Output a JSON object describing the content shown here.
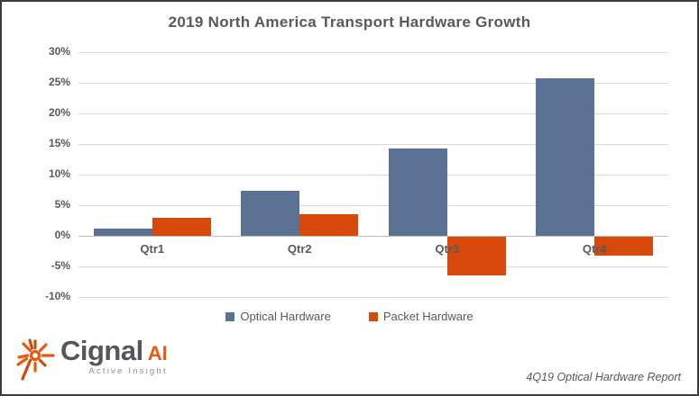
{
  "title": "2019 North America Transport Hardware Growth",
  "footer_note": "4Q19 Optical Hardware Report",
  "logo": {
    "name": "Cignal",
    "suffix": "AI",
    "tagline": "Active Insight",
    "icon": "starburst-icon",
    "icon_color": "#e8590e",
    "text_color": "#54565a"
  },
  "colors": {
    "optical": "#5b7294",
    "packet": "#d6490a",
    "text": "#595959",
    "gridline": "#d9d9d9",
    "zero_line": "#bfbfbf"
  },
  "chart_data": {
    "type": "bar",
    "title": "2019 North America Transport Hardware Growth",
    "categories": [
      "Qtr1",
      "Qtr2",
      "Qtr3",
      "Qtr4"
    ],
    "series": [
      {
        "name": "Optical Hardware",
        "color": "#5b7294",
        "values": [
          1.2,
          7.4,
          14.3,
          25.7
        ]
      },
      {
        "name": "Packet Hardware",
        "color": "#d6490a",
        "values": [
          3.0,
          3.5,
          -6.3,
          -3.1
        ]
      }
    ],
    "xlabel": "",
    "ylabel": "",
    "ylim": [
      -10,
      30
    ],
    "yticks": [
      30,
      25,
      20,
      15,
      10,
      5,
      0,
      -5,
      -10
    ],
    "ytick_suffix": "%",
    "grid": true,
    "legend_position": "bottom"
  }
}
